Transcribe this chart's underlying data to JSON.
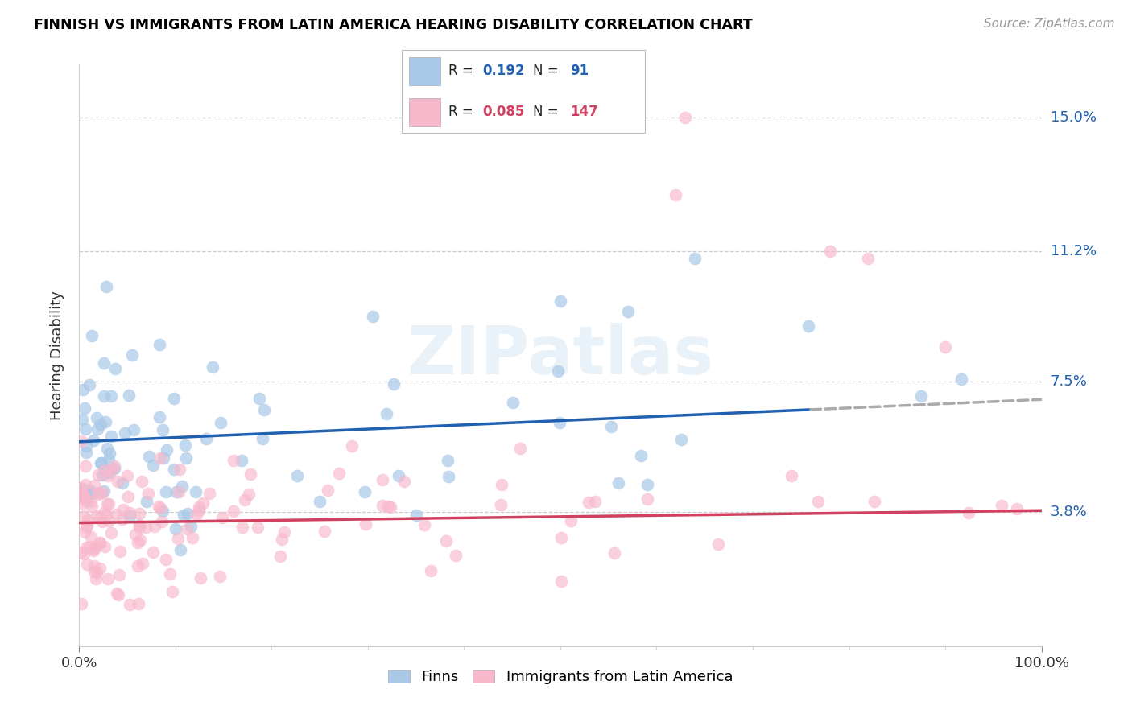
{
  "title": "FINNISH VS IMMIGRANTS FROM LATIN AMERICA HEARING DISABILITY CORRELATION CHART",
  "source": "Source: ZipAtlas.com",
  "ylabel": "Hearing Disability",
  "watermark": "ZIPatlas",
  "ytick_vals": [
    3.8,
    7.5,
    11.2,
    15.0
  ],
  "ytick_labels": [
    "3.8%",
    "7.5%",
    "11.2%",
    "15.0%"
  ],
  "legend_blue_r": "0.192",
  "legend_blue_n": "91",
  "legend_pink_r": "0.085",
  "legend_pink_n": "147",
  "legend_label_blue": "Finns",
  "legend_label_pink": "Immigrants from Latin America",
  "blue_color": "#a8c8e8",
  "pink_color": "#f8b8cc",
  "line_blue": "#2060b0",
  "line_pink": "#d04060",
  "line_gray_dash": "#aaaaaa",
  "blue_line_start_y": 5.8,
  "blue_line_end_y": 7.0,
  "blue_line_solid_end_x": 76,
  "pink_line_start_y": 3.5,
  "pink_line_end_y": 3.85,
  "xlim": [
    0,
    100
  ],
  "ylim": [
    0.0,
    16.5
  ],
  "xtick_minor_count": 9
}
